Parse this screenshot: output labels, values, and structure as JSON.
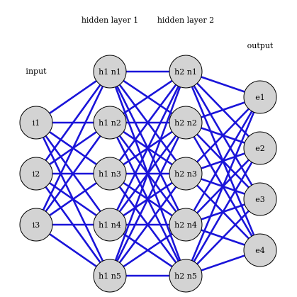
{
  "colors": {
    "edge": "#1a14d9",
    "node_fill": "#d3d3d3",
    "node_stroke": "#000000",
    "background": "#ffffff"
  },
  "layers": [
    {
      "id": "input",
      "label": "input",
      "nodes": [
        "i1",
        "i2",
        "i3"
      ]
    },
    {
      "id": "hidden1",
      "label": "hidden layer 1",
      "nodes": [
        "h1 n1",
        "h1 n2",
        "h1 n3",
        "h1 n4",
        "h1 n5"
      ]
    },
    {
      "id": "hidden2",
      "label": "hidden layer 2",
      "nodes": [
        "h2 n1",
        "h2 n2",
        "h2 n3",
        "h2 n4",
        "h2 n5"
      ]
    },
    {
      "id": "output",
      "label": "output",
      "nodes": [
        "e1",
        "e2",
        "e3",
        "e4"
      ]
    }
  ],
  "connectivity": "fully-connected between adjacent layers"
}
